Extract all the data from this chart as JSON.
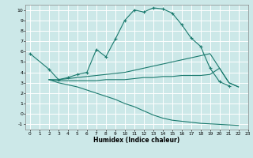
{
  "xlabel": "Humidex (Indice chaleur)",
  "xlim": [
    -0.5,
    23
  ],
  "ylim": [
    -1.5,
    10.5
  ],
  "xticks": [
    0,
    1,
    2,
    3,
    4,
    5,
    6,
    7,
    8,
    9,
    10,
    11,
    12,
    13,
    14,
    15,
    16,
    17,
    18,
    19,
    20,
    21,
    22,
    23
  ],
  "yticks": [
    -1,
    0,
    1,
    2,
    3,
    4,
    5,
    6,
    7,
    8,
    9,
    10
  ],
  "bg_color": "#cce8e8",
  "grid_color": "#ffffff",
  "line_color": "#1a7a6e",
  "lines": [
    {
      "x": [
        0,
        2,
        3,
        4,
        5,
        6,
        7,
        8,
        9,
        10,
        11,
        12,
        13,
        14,
        15,
        16,
        17,
        18,
        19,
        20,
        21
      ],
      "y": [
        5.8,
        4.3,
        3.3,
        3.5,
        3.8,
        4.0,
        6.2,
        5.5,
        7.2,
        9.0,
        10.0,
        9.8,
        10.2,
        10.1,
        9.7,
        8.6,
        7.3,
        6.5,
        4.4,
        3.1,
        2.7
      ],
      "markers": true
    },
    {
      "x": [
        2,
        3,
        4,
        5,
        6,
        7,
        8,
        9,
        10,
        11,
        12,
        13,
        14,
        15,
        16,
        17,
        18,
        19,
        20,
        21,
        22
      ],
      "y": [
        3.3,
        3.3,
        3.4,
        3.5,
        3.6,
        3.7,
        3.8,
        3.9,
        4.0,
        4.2,
        4.4,
        4.6,
        4.8,
        5.0,
        5.2,
        5.4,
        5.6,
        5.8,
        4.4,
        3.0,
        2.6
      ],
      "markers": false
    },
    {
      "x": [
        2,
        3,
        4,
        5,
        6,
        7,
        8,
        9,
        10,
        11,
        12,
        13,
        14,
        15,
        16,
        17,
        18,
        19,
        20,
        21,
        22
      ],
      "y": [
        3.3,
        3.2,
        3.2,
        3.2,
        3.2,
        3.2,
        3.3,
        3.3,
        3.3,
        3.4,
        3.5,
        3.5,
        3.6,
        3.6,
        3.7,
        3.7,
        3.7,
        3.8,
        4.4,
        3.0,
        2.6
      ],
      "markers": false
    },
    {
      "x": [
        2,
        3,
        4,
        5,
        6,
        7,
        8,
        9,
        10,
        11,
        12,
        13,
        14,
        15,
        16,
        17,
        18,
        22
      ],
      "y": [
        3.3,
        3.0,
        2.8,
        2.6,
        2.3,
        2.0,
        1.7,
        1.4,
        1.0,
        0.7,
        0.3,
        -0.1,
        -0.4,
        -0.6,
        -0.7,
        -0.8,
        -0.9,
        -1.1
      ],
      "markers": false
    }
  ]
}
